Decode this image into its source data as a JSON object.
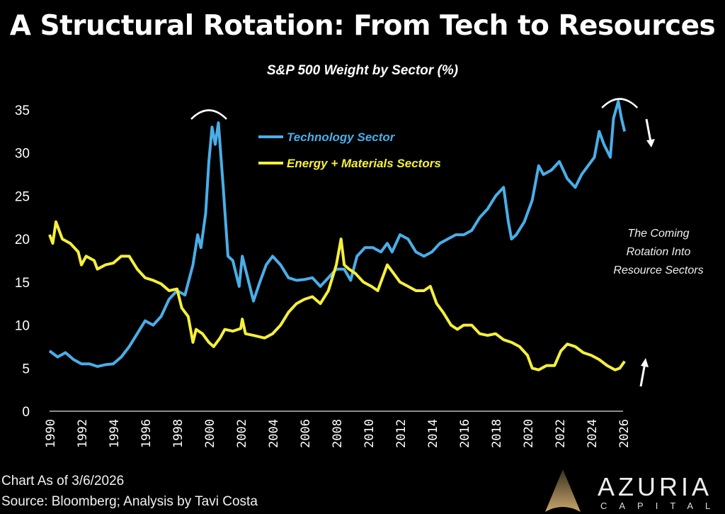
{
  "chart_data": {
    "type": "line",
    "title": "A Structural Rotation: From Tech to Resources",
    "subtitle": "S&P 500 Weight by Sector (%)",
    "xlabel": "",
    "ylabel": "",
    "xlim": [
      1990,
      2026
    ],
    "ylim": [
      0,
      35
    ],
    "x_ticks": [
      "1990",
      "1992",
      "1994",
      "1996",
      "1998",
      "2000",
      "2002",
      "2004",
      "2006",
      "2008",
      "2010",
      "2012",
      "2014",
      "2016",
      "2018",
      "2020",
      "2022",
      "2024",
      "2026"
    ],
    "y_ticks": [
      "0",
      "5",
      "10",
      "15",
      "20",
      "25",
      "30",
      "35"
    ],
    "grid": false,
    "legend_placement": "top-center",
    "series": [
      {
        "name": "Technology Sector",
        "color": "#4aaee8",
        "x": [
          1990,
          1990.5,
          1991,
          1991.5,
          1992,
          1992.5,
          1993,
          1993.5,
          1994,
          1994.5,
          1995,
          1995.5,
          1996,
          1996.5,
          1997,
          1997.5,
          1998,
          1998.5,
          1999,
          1999.3,
          1999.5,
          1999.8,
          2000,
          2000.2,
          2000.4,
          2000.6,
          2000.9,
          2001.2,
          2001.5,
          2001.9,
          2002.1,
          2002.5,
          2002.8,
          2003.2,
          2003.6,
          2004,
          2004.5,
          2005,
          2005.5,
          2006,
          2006.5,
          2007,
          2007.5,
          2008,
          2008.5,
          2008.9,
          2009.3,
          2009.8,
          2010.3,
          2010.8,
          2011.2,
          2011.5,
          2012,
          2012.5,
          2013,
          2013.5,
          2014,
          2014.5,
          2015,
          2015.5,
          2016,
          2016.5,
          2017,
          2017.5,
          2018,
          2018.5,
          2018.8,
          2019,
          2019.3,
          2019.8,
          2020.3,
          2020.7,
          2021,
          2021.5,
          2022,
          2022.5,
          2023,
          2023.4,
          2023.8,
          2024.2,
          2024.5,
          2024.8,
          2025.2,
          2025.4,
          2025.7,
          2025.9,
          2026.1
        ],
        "y": [
          7,
          6.3,
          6.8,
          6,
          5.5,
          5.5,
          5.2,
          5.4,
          5.5,
          6.3,
          7.5,
          9,
          10.5,
          10,
          11,
          13,
          14,
          13.5,
          17,
          20.5,
          19,
          23,
          29,
          33,
          31,
          33.5,
          26,
          18,
          17.5,
          14.5,
          18,
          15,
          12.8,
          15,
          17,
          18,
          17,
          15.5,
          15.2,
          15.3,
          15.5,
          14.5,
          15.5,
          16.5,
          16.5,
          15.2,
          18,
          19,
          19,
          18.5,
          19.5,
          18.5,
          20.5,
          20,
          18.5,
          18,
          18.5,
          19.5,
          20,
          20.5,
          20.5,
          21,
          22.5,
          23.5,
          25,
          26,
          22,
          20,
          20.5,
          22,
          24.5,
          28.5,
          27.5,
          28,
          29,
          27,
          26,
          27.5,
          28.5,
          29.5,
          32.5,
          31,
          29.5,
          34,
          36,
          34,
          32.5
        ]
      },
      {
        "name": "Energy + Materials Sectors",
        "color": "#f5f03a",
        "x": [
          1990,
          1990.2,
          1990.4,
          1990.8,
          1991.3,
          1991.8,
          1992,
          1992.3,
          1992.8,
          1993,
          1993.5,
          1994,
          1994.5,
          1995,
          1995.5,
          1996,
          1996.5,
          1997,
          1997.5,
          1998,
          1998.3,
          1998.7,
          1999,
          1999.2,
          1999.6,
          2000,
          2000.3,
          2000.7,
          2001,
          2001.5,
          2002,
          2002.1,
          2002.3,
          2002.8,
          2003.5,
          2004,
          2004.5,
          2005,
          2005.5,
          2006,
          2006.5,
          2007,
          2007.5,
          2008,
          2008.3,
          2008.5,
          2008.8,
          2009.2,
          2009.7,
          2010.2,
          2010.6,
          2011,
          2011.2,
          2011.6,
          2012,
          2012.5,
          2013,
          2013.5,
          2013.9,
          2014.3,
          2014.7,
          2015.2,
          2015.6,
          2016,
          2016.5,
          2017,
          2017.5,
          2018,
          2018.5,
          2019,
          2019.5,
          2020,
          2020.3,
          2020.7,
          2021.2,
          2021.7,
          2022.1,
          2022.5,
          2023,
          2023.5,
          2024,
          2024.5,
          2025,
          2025.5,
          2025.8,
          2026.1
        ],
        "y": [
          20.5,
          19.5,
          22,
          20,
          19.5,
          18.5,
          17,
          18,
          17.5,
          16.5,
          17,
          17.2,
          18,
          18,
          16.5,
          15.5,
          15.2,
          14.8,
          14,
          14.2,
          12,
          11,
          8,
          9.5,
          9,
          8,
          7.5,
          8.5,
          9.5,
          9.3,
          9.6,
          10.7,
          9,
          8.8,
          8.5,
          9,
          10,
          11.5,
          12.5,
          13,
          13.3,
          12.5,
          14,
          17,
          20,
          17,
          16.5,
          16,
          15,
          14.5,
          14,
          16,
          17,
          16,
          15,
          14.5,
          14,
          14,
          14.5,
          12.5,
          11.5,
          10,
          9.5,
          10,
          10,
          9,
          8.8,
          9,
          8.3,
          8,
          7.5,
          6.5,
          5,
          4.8,
          5.3,
          5.3,
          7,
          7.8,
          7.5,
          6.8,
          6.5,
          6,
          5.3,
          4.8,
          5,
          5.8
        ]
      }
    ],
    "annotations": {
      "rotation_lines": [
        "The Coming",
        "Rotation Into",
        "Resource Sectors"
      ],
      "arrows": [
        "down-arrow near technology end",
        "up-arrow near energy end"
      ],
      "peak_arcs": [
        2000,
        2025.7
      ]
    }
  },
  "footer": {
    "as_of": "Chart As of 3/6/2026",
    "source": "Source: Bloomberg; Analysis by Tavi Costa"
  },
  "logo": {
    "word": "AZURIA",
    "sub": "CAPITAL"
  }
}
